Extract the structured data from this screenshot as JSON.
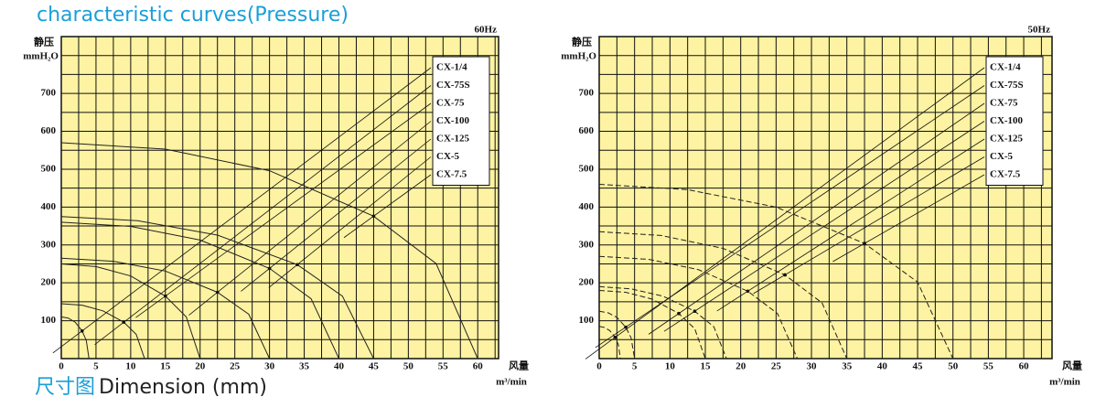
{
  "heading": "characteristic curves(Pressure)",
  "footer": {
    "zh": "尺寸图",
    "en": "Dimension (mm)"
  },
  "chart_data": [
    {
      "type": "line",
      "subtitle": "60Hz",
      "ylabel": "静压",
      "yunit": "mmH₂O",
      "xlabel": "风量",
      "xunit": "m³/min",
      "xlim": [
        0,
        63
      ],
      "ylim": [
        0,
        850
      ],
      "xticks": [
        0,
        5,
        10,
        15,
        20,
        25,
        30,
        35,
        40,
        45,
        50,
        55,
        60
      ],
      "yticks": [
        100,
        200,
        300,
        400,
        500,
        600,
        700
      ],
      "grid": true,
      "legend": "upper right",
      "background": "#fdf3a2",
      "line_style": "solid",
      "series": [
        {
          "name": "CX-1/4",
          "color": "#222222",
          "x": [
            0,
            1,
            2,
            3,
            3.6,
            4
          ],
          "values": [
            110,
            107,
            96,
            73,
            48,
            0
          ]
        },
        {
          "name": "CX-75S",
          "color": "#222222",
          "x": [
            0,
            3,
            6,
            9,
            10.8,
            12
          ],
          "values": [
            145,
            141,
            126,
            96,
            64,
            0
          ]
        },
        {
          "name": "CX-75",
          "color": "#222222",
          "x": [
            0,
            5,
            10,
            15,
            18,
            20
          ],
          "values": [
            250,
            243,
            218,
            165,
            110,
            0
          ]
        },
        {
          "name": "CX-100",
          "color": "#222222",
          "x": [
            0,
            7.5,
            15,
            22.5,
            27,
            30
          ],
          "values": [
            265,
            257,
            231,
            175,
            117,
            0
          ]
        },
        {
          "name": "CX-125",
          "color": "#222222",
          "x": [
            0,
            10,
            20,
            30,
            36,
            40
          ],
          "values": [
            360,
            349,
            313,
            238,
            158,
            0
          ]
        },
        {
          "name": "CX-5",
          "color": "#222222",
          "x": [
            0,
            11,
            22.5,
            34,
            40.5,
            45
          ],
          "values": [
            375,
            364,
            326,
            248,
            165,
            0
          ]
        },
        {
          "name": "CX-7.5",
          "color": "#222222",
          "x": [
            0,
            15,
            30,
            45,
            54,
            60
          ],
          "values": [
            570,
            553,
            496,
            376,
            251,
            0
          ]
        }
      ]
    },
    {
      "type": "line",
      "subtitle": "50Hz",
      "ylabel": "静压",
      "yunit": "mmH₂O",
      "xlabel": "风量",
      "xunit": "m³/min",
      "xlim": [
        0,
        64
      ],
      "ylim": [
        0,
        850
      ],
      "xticks": [
        0,
        5,
        10,
        15,
        20,
        25,
        30,
        35,
        40,
        45,
        50,
        55,
        60
      ],
      "yticks": [
        100,
        200,
        300,
        400,
        500,
        600,
        700
      ],
      "grid": true,
      "legend": "upper right",
      "background": "#fdf3a2",
      "line_style": "dashed",
      "series": [
        {
          "name": "CX-1/4",
          "color": "#222222",
          "x": [
            0,
            0.75,
            1.5,
            2.25,
            2.7,
            3
          ],
          "values": [
            85,
            82,
            74,
            56,
            37,
            0
          ]
        },
        {
          "name": "CX-75S",
          "color": "#222222",
          "x": [
            0,
            1.25,
            2.5,
            3.75,
            4.5,
            5
          ],
          "values": [
            125,
            121,
            109,
            83,
            55,
            0
          ]
        },
        {
          "name": "CX-75",
          "color": "#222222",
          "x": [
            0,
            3.75,
            7.5,
            11.25,
            13.5,
            15
          ],
          "values": [
            180,
            175,
            157,
            119,
            79,
            0
          ]
        },
        {
          "name": "CX-100",
          "color": "#222222",
          "x": [
            0,
            4.5,
            9,
            13.5,
            16.2,
            18
          ],
          "values": [
            190,
            184,
            165,
            125,
            84,
            0
          ]
        },
        {
          "name": "CX-125",
          "color": "#222222",
          "x": [
            0,
            7,
            14,
            21,
            25.2,
            28
          ],
          "values": [
            270,
            262,
            235,
            178,
            119,
            0
          ]
        },
        {
          "name": "CX-5",
          "color": "#222222",
          "x": [
            0,
            8.75,
            17.5,
            26.25,
            31.5,
            35
          ],
          "values": [
            335,
            325,
            291,
            221,
            147,
            0
          ]
        },
        {
          "name": "CX-7.5",
          "color": "#222222",
          "x": [
            0,
            12.5,
            25,
            37.5,
            45,
            50
          ],
          "values": [
            460,
            446,
            400,
            304,
            202,
            0
          ]
        }
      ]
    }
  ]
}
